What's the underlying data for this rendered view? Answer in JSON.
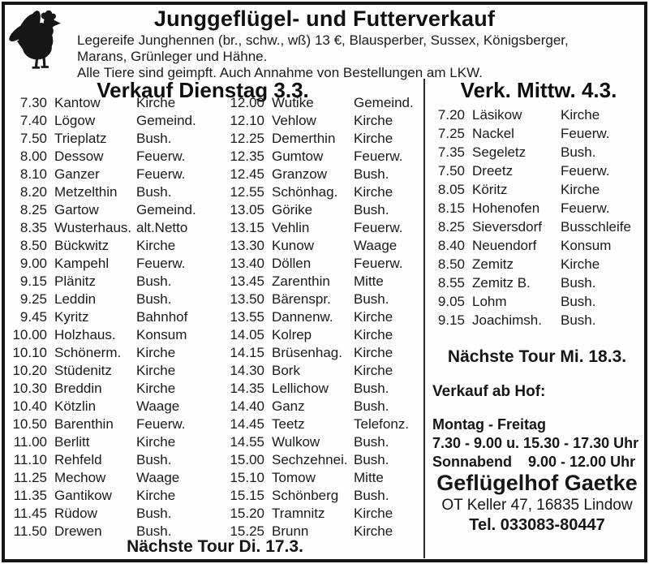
{
  "ad": {
    "title": "Junggeflügel- und Futterverkauf",
    "description_lines": [
      "Legereife Junghennen (br., schw., wß) 13 €, Blausperber, Sussex, Königsberger,",
      "Marans, Grünleger und Hähne.",
      "Alle Tiere sind geimpft. Auch Annahme von Bestellungen am LKW."
    ],
    "rooster_icon": "rooster-silhouette"
  },
  "tuesday": {
    "title": "Verkauf Dienstag 3.3.",
    "col_a": [
      {
        "t": "7.30",
        "p": "Kantow",
        "l": "Kirche"
      },
      {
        "t": "7.40",
        "p": "Lögow",
        "l": "Gemeind."
      },
      {
        "t": "7.50",
        "p": "Trieplatz",
        "l": "Bush."
      },
      {
        "t": "8.00",
        "p": "Dessow",
        "l": "Feuerw."
      },
      {
        "t": "8.10",
        "p": "Ganzer",
        "l": "Feuerw."
      },
      {
        "t": "8.20",
        "p": "Metzelthin",
        "l": "Bush."
      },
      {
        "t": "8.25",
        "p": "Gartow",
        "l": "Gemeind."
      },
      {
        "t": "8.35",
        "p": "Wusterhaus.",
        "l": "alt.Netto"
      },
      {
        "t": "8.50",
        "p": "Bückwitz",
        "l": "Kirche"
      },
      {
        "t": "9.00",
        "p": "Kampehl",
        "l": "Feuerw."
      },
      {
        "t": "9.15",
        "p": "Plänitz",
        "l": "Bush."
      },
      {
        "t": "9.25",
        "p": "Leddin",
        "l": "Bush."
      },
      {
        "t": "9.45",
        "p": "Kyritz",
        "l": "Bahnhof"
      },
      {
        "t": "10.00",
        "p": "Holzhaus.",
        "l": "Konsum"
      },
      {
        "t": "10.10",
        "p": "Schönerm.",
        "l": "Kirche"
      },
      {
        "t": "10.20",
        "p": "Stüdenitz",
        "l": "Kirche"
      },
      {
        "t": "10.30",
        "p": "Breddin",
        "l": "Kirche"
      },
      {
        "t": "10.40",
        "p": "Kötzlin",
        "l": "Waage"
      },
      {
        "t": "10.50",
        "p": "Barenthin",
        "l": "Feuerw."
      },
      {
        "t": "11.00",
        "p": "Berlitt",
        "l": "Kirche"
      },
      {
        "t": "11.10",
        "p": "Rehfeld",
        "l": "Bush."
      },
      {
        "t": "11.25",
        "p": "Mechow",
        "l": "Waage"
      },
      {
        "t": "11.35",
        "p": "Gantikow",
        "l": "Kirche"
      },
      {
        "t": "11.45",
        "p": "Rüdow",
        "l": "Bush."
      },
      {
        "t": "11.50",
        "p": "Drewen",
        "l": "Bush."
      }
    ],
    "col_b": [
      {
        "t": "12.00",
        "p": "Wutike",
        "l": "Gemeind."
      },
      {
        "t": "12.10",
        "p": "Vehlow",
        "l": "Kirche"
      },
      {
        "t": "12.25",
        "p": "Demerthin",
        "l": "Kirche"
      },
      {
        "t": "12.35",
        "p": "Gumtow",
        "l": "Feuerw."
      },
      {
        "t": "12.45",
        "p": "Granzow",
        "l": "Bush."
      },
      {
        "t": "12.55",
        "p": "Schönhag.",
        "l": "Kirche"
      },
      {
        "t": "13.05",
        "p": "Görike",
        "l": "Bush."
      },
      {
        "t": "13.15",
        "p": "Vehlin",
        "l": "Feuerw."
      },
      {
        "t": "13.30",
        "p": "Kunow",
        "l": "Waage"
      },
      {
        "t": "13.40",
        "p": "Döllen",
        "l": "Feuerw."
      },
      {
        "t": "13.45",
        "p": "Zarenthin",
        "l": "Mitte"
      },
      {
        "t": "13.50",
        "p": "Bärenspr.",
        "l": "Bush."
      },
      {
        "t": "13.55",
        "p": "Dannenw.",
        "l": "Kirche"
      },
      {
        "t": "14.05",
        "p": "Kolrep",
        "l": "Kirche"
      },
      {
        "t": "14.15",
        "p": "Brüsenhag.",
        "l": "Kirche"
      },
      {
        "t": "14.30",
        "p": "Bork",
        "l": "Kirche"
      },
      {
        "t": "14.35",
        "p": "Lellichow",
        "l": "Bush."
      },
      {
        "t": "14.40",
        "p": "Ganz",
        "l": "Bush."
      },
      {
        "t": "14.45",
        "p": "Teetz",
        "l": "Telefonz."
      },
      {
        "t": "14.55",
        "p": "Wulkow",
        "l": "Bush."
      },
      {
        "t": "15.00",
        "p": "Sechzehnei.",
        "l": "Bush."
      },
      {
        "t": "15.10",
        "p": "Tomow",
        "l": "Mitte"
      },
      {
        "t": "15.15",
        "p": "Schönberg",
        "l": "Bush."
      },
      {
        "t": "15.20",
        "p": "Tramnitz",
        "l": "Kirche"
      },
      {
        "t": "15.25",
        "p": "Brunn",
        "l": "Kirche"
      }
    ],
    "next_tour": "Nächste Tour Di. 17.3."
  },
  "wednesday": {
    "title": "Verk. Mittw. 4.3.",
    "rows": [
      {
        "t": "7.20",
        "p": "Läsikow",
        "l": "Kirche"
      },
      {
        "t": "7.25",
        "p": "Nackel",
        "l": "Feuerw."
      },
      {
        "t": "7.35",
        "p": "Segeletz",
        "l": "Bush."
      },
      {
        "t": "7.50",
        "p": "Dreetz",
        "l": "Feuerw."
      },
      {
        "t": "8.05",
        "p": "Köritz",
        "l": "Kirche"
      },
      {
        "t": "8.15",
        "p": "Hohenofen",
        "l": "Feuerw."
      },
      {
        "t": "8.25",
        "p": "Sieversdorf",
        "l": "Busschleife"
      },
      {
        "t": "8.40",
        "p": "Neuendorf",
        "l": "Konsum"
      },
      {
        "t": "8.50",
        "p": "Zemitz",
        "l": "Kirche"
      },
      {
        "t": "8.55",
        "p": "Zemitz B.",
        "l": "Bush."
      },
      {
        "t": "9.05",
        "p": "Lohm",
        "l": "Bush."
      },
      {
        "t": "9.15",
        "p": "Joachimsh.",
        "l": "Bush."
      }
    ],
    "next_tour": "Nächste Tour Mi. 18.3.",
    "farm_sale_label": "Verkauf ab Hof:",
    "hours": [
      "Montag - Freitag",
      "7.30 - 9.00 u. 15.30 - 17.30 Uhr",
      "Sonnabend    9.00 - 12.00 Uhr"
    ],
    "business": {
      "name": "Geflügelhof Gaetke",
      "address": "OT Keller 47, 16835 Lindow",
      "phone": "Tel. 033083-80447"
    }
  }
}
